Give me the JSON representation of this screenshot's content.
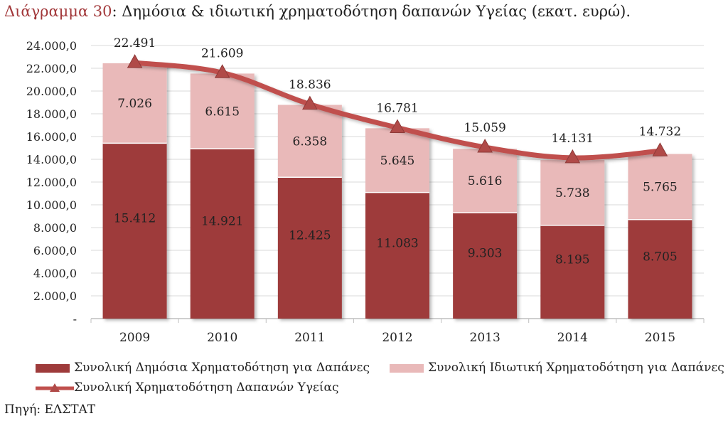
{
  "title": {
    "prefix": "Διάγραμμα 30",
    "text": ": Δημόσια & ιδιωτική χρηματοδότηση δαπανών Υγείας (εκατ. ευρώ)."
  },
  "source": "Πηγή: ΕΛΣΤΑΤ",
  "chart_data": {
    "type": "bar",
    "stacked": true,
    "categories": [
      "2009",
      "2010",
      "2011",
      "2012",
      "2013",
      "2014",
      "2015"
    ],
    "series": [
      {
        "name": "Συνολική Δημόσια Χρηματοδότηση για Δαπάνες",
        "kind": "bar",
        "color": "#9e3b3b",
        "values": [
          15412,
          14921,
          12425,
          11083,
          9303,
          8195,
          8705
        ],
        "labels": [
          "15.412",
          "14.921",
          "12.425",
          "11.083",
          "9.303",
          "8.195",
          "8.705"
        ]
      },
      {
        "name": "Συνολική Ιδιωτική Χρηματοδότηση για Δαπάνες",
        "kind": "bar",
        "color": "#e9b9b9",
        "values": [
          7026,
          6615,
          6358,
          5645,
          5616,
          5738,
          5765
        ],
        "labels": [
          "7.026",
          "6.615",
          "6.358",
          "5.645",
          "5.616",
          "5.738",
          "5.765"
        ]
      },
      {
        "name": "Συνολική Χρηματοδότηση Δαπανών Υγείας",
        "kind": "line",
        "color": "#c0504d",
        "values": [
          22491,
          21609,
          18836,
          16781,
          15059,
          14131,
          14732
        ],
        "labels": [
          "22.491",
          "21.609",
          "18.836",
          "16.781",
          "15.059",
          "14.131",
          "14.732"
        ]
      }
    ],
    "ylim": [
      0,
      24000
    ],
    "yticks": [
      0,
      2000,
      4000,
      6000,
      8000,
      10000,
      12000,
      14000,
      16000,
      18000,
      20000,
      22000,
      24000
    ],
    "ytick_labels": [
      "-",
      "2.000,0",
      "4.000,0",
      "6.000,0",
      "8.000,0",
      "10.000,0",
      "12.000,0",
      "14.000,0",
      "16.000,0",
      "18.000,0",
      "20.000,0",
      "22.000,0",
      "24.000,0"
    ],
    "grid": true,
    "legend_position": "bottom"
  }
}
